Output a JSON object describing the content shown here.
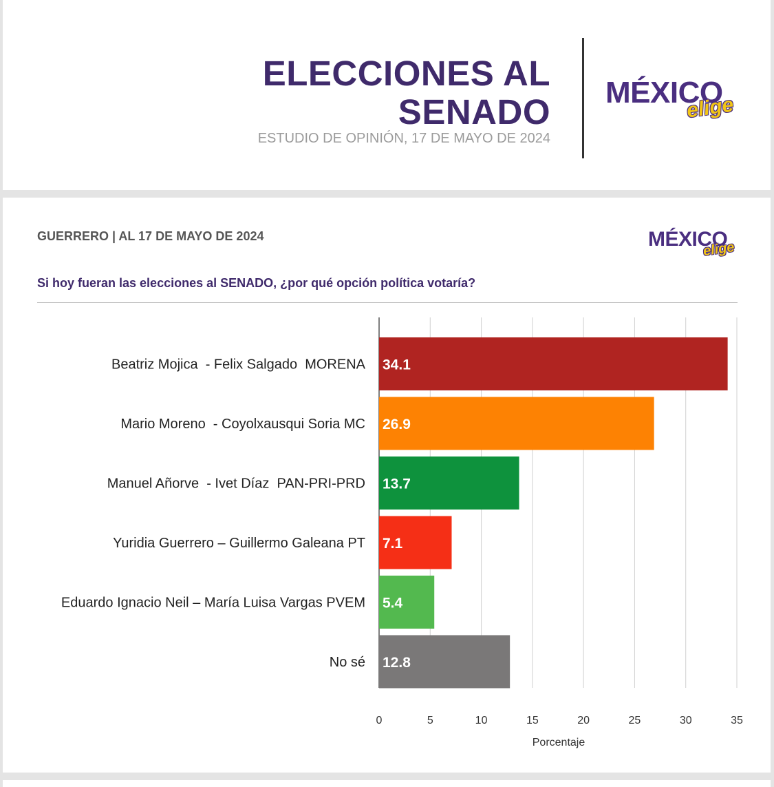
{
  "header": {
    "title_line1": "ELECCIONES AL",
    "title_line2": "SENADO",
    "subtitle": "ESTUDIO DE OPINIÓN, 17 DE MAYO DE 2024",
    "logo_main": "MÉXICO",
    "logo_sub": "elige"
  },
  "card": {
    "header": "GUERRERO | AL 17 DE MAYO DE 2024",
    "question": "Si hoy fueran las elecciones al SENADO, ¿por qué opción política votaría?",
    "logo_main": "MÉXICO",
    "logo_sub": "elige"
  },
  "colors": {
    "title": "#3f2a6b",
    "grid": "#d0d0d0"
  },
  "chart_data": {
    "type": "bar",
    "orientation": "horizontal",
    "categories": [
      "Beatriz Mojica  - Felix Salgado  MORENA",
      "Mario Moreno  - Coyolxausqui Soria MC",
      "Manuel Añorve  - Ivet Díaz  PAN-PRI-PRD",
      "Yuridia Guerrero – Guillermo Galeana PT",
      "Eduardo Ignacio Neil – María Luisa Vargas PVEM",
      "No sé"
    ],
    "values": [
      34.1,
      26.9,
      13.7,
      7.1,
      5.4,
      12.8
    ],
    "labels": [
      "34.1",
      "26.9",
      "13.7",
      "7.1",
      "5.4",
      "12.8"
    ],
    "bar_colors": [
      "#b02421",
      "#fd8203",
      "#0e923d",
      "#f52f16",
      "#53b94f",
      "#7a7878"
    ],
    "xlabel": "Porcentaje",
    "xlim": [
      0,
      35
    ],
    "xticks": [
      "0",
      "5",
      "10",
      "15",
      "20",
      "25",
      "30",
      "35"
    ],
    "grid": true
  }
}
